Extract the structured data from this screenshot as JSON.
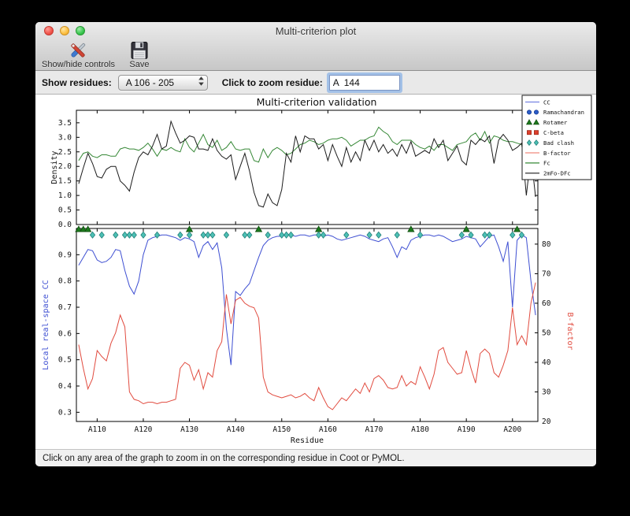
{
  "window": {
    "title": "Multi-criterion plot"
  },
  "toolbar": {
    "show_hide_label": "Show/hide controls",
    "save_label": "Save"
  },
  "controls": {
    "show_residues_label": "Show residues:",
    "show_residues_value": "A 106 - 205",
    "zoom_label": "Click to zoom residue:",
    "zoom_value": "A  144"
  },
  "statusbar": {
    "text": "Click on any area of the graph to zoom in on the corresponding residue in Coot or PyMOL."
  },
  "chart_data": {
    "type": "line",
    "title": "Multi-criterion validation",
    "xlabel": "Residue",
    "x_start": 106,
    "x_end": 205,
    "xlim": [
      105.5,
      205.5
    ],
    "x_tick_residues": [
      110,
      120,
      130,
      140,
      150,
      160,
      170,
      180,
      190,
      200
    ],
    "x_tick_labels": [
      "A110",
      "A120",
      "A130",
      "A140",
      "A150",
      "A160",
      "A170",
      "A180",
      "A190",
      "A200"
    ],
    "grid": false,
    "legend_position": "upper right",
    "top_panel": {
      "ylabel": "Density",
      "ylabel_color": "#111111",
      "ylim": [
        0,
        3.93
      ],
      "yticks": [
        0,
        0.5,
        1,
        1.5,
        2,
        2.5,
        3,
        3.5
      ],
      "ytick_labels": [
        "0.0",
        "0.5",
        "1.0",
        "1.5",
        "2.0",
        "2.5",
        "3.0",
        "3.5"
      ],
      "series": [
        {
          "name": "Fc",
          "color": "#368836",
          "values": [
            2.2,
            2.45,
            2.5,
            2.35,
            2.3,
            2.4,
            2.4,
            2.35,
            2.35,
            2.6,
            2.65,
            2.6,
            2.6,
            2.55,
            2.65,
            2.8,
            2.6,
            2.35,
            2.6,
            2.55,
            2.65,
            2.55,
            2.5,
            2.95,
            2.65,
            2.5,
            2.8,
            3.1,
            2.75,
            2.65,
            2.9,
            2.55,
            2.65,
            2.85,
            2.6,
            2.55,
            2.6,
            2.6,
            2.2,
            2.15,
            2.6,
            2.3,
            2.55,
            2.65,
            2.55,
            2.4,
            2.45,
            2.6,
            2.75,
            2.8,
            2.9,
            2.85,
            2.75,
            2.8,
            2.9,
            2.95,
            2.95,
            3.0,
            2.9,
            2.7,
            2.8,
            2.9,
            2.9,
            3.0,
            3.05,
            3.35,
            3.2,
            3.1,
            2.85,
            2.75,
            2.9,
            2.9,
            2.9,
            2.75,
            2.65,
            2.6,
            2.7,
            2.55,
            2.75,
            2.75,
            2.65,
            2.55,
            2.75,
            2.8,
            2.85,
            3.05,
            3.15,
            2.9,
            3.2,
            2.8,
            3.05,
            3.0,
            2.9,
            2.85,
            2.85,
            2.8,
            2.75,
            1.9,
            2.65,
            2.55
          ]
        },
        {
          "name": "2mFo-DFc",
          "color": "#1b1b1b",
          "values": [
            1.4,
            1.95,
            2.45,
            2.1,
            1.65,
            1.6,
            1.9,
            2.0,
            2.0,
            1.5,
            1.35,
            1.15,
            1.8,
            2.3,
            2.5,
            2.4,
            2.7,
            3.1,
            2.6,
            2.7,
            3.55,
            3.15,
            2.8,
            2.9,
            3.05,
            3.0,
            2.6,
            2.6,
            2.55,
            2.95,
            2.55,
            2.35,
            2.25,
            2.4,
            1.55,
            2.0,
            2.45,
            1.85,
            1.1,
            0.65,
            0.6,
            1.05,
            0.75,
            0.65,
            1.2,
            2.45,
            2.15,
            3.05,
            2.5,
            3.05,
            2.95,
            2.95,
            2.6,
            2.75,
            2.2,
            2.75,
            2.35,
            2.0,
            2.65,
            2.15,
            2.5,
            2.2,
            2.9,
            2.55,
            2.9,
            2.5,
            2.75,
            2.45,
            2.6,
            2.35,
            2.75,
            2.45,
            2.85,
            2.35,
            2.45,
            2.55,
            2.45,
            2.95,
            2.65,
            2.9,
            2.2,
            2.45,
            2.7,
            2.2,
            2.05,
            2.9,
            2.75,
            2.95,
            2.85,
            3.05,
            2.1,
            2.9,
            3.1,
            2.9,
            2.55,
            2.65,
            2.8,
            1.0,
            2.4,
            0.95
          ]
        }
      ]
    },
    "bottom_panel": {
      "left_axis": {
        "ylabel": "Local real-space CC",
        "color": "#3e4fd2",
        "ylim": [
          0.265,
          1.0
        ],
        "yticks": [
          0.3,
          0.4,
          0.5,
          0.6,
          0.7,
          0.8,
          0.9
        ],
        "ytick_labels": [
          "0.3",
          "0.4",
          "0.5",
          "0.6",
          "0.7",
          "0.8",
          "0.9"
        ]
      },
      "right_axis": {
        "ylabel": "B-factor",
        "color": "#e14b3f",
        "ylim": [
          20,
          85.3
        ],
        "yticks": [
          20,
          30,
          40,
          50,
          60,
          70,
          80
        ],
        "ytick_labels": [
          "20",
          "30",
          "40",
          "50",
          "60",
          "70",
          "80"
        ]
      },
      "series": [
        {
          "name": "CC",
          "axis": "left",
          "color": "#3e4fd2",
          "values": [
            0.86,
            0.89,
            0.92,
            0.915,
            0.88,
            0.87,
            0.875,
            0.89,
            0.92,
            0.915,
            0.84,
            0.78,
            0.75,
            0.8,
            0.9,
            0.955,
            0.965,
            0.97,
            0.975,
            0.975,
            0.97,
            0.965,
            0.955,
            0.965,
            0.96,
            0.95,
            0.89,
            0.935,
            0.95,
            0.92,
            0.945,
            0.85,
            0.62,
            0.48,
            0.76,
            0.745,
            0.77,
            0.79,
            0.84,
            0.89,
            0.935,
            0.955,
            0.965,
            0.97,
            0.97,
            0.975,
            0.975,
            0.97,
            0.975,
            0.975,
            0.97,
            0.975,
            0.975,
            0.97,
            0.975,
            0.97,
            0.96,
            0.955,
            0.96,
            0.965,
            0.97,
            0.975,
            0.97,
            0.96,
            0.955,
            0.95,
            0.96,
            0.965,
            0.93,
            0.89,
            0.93,
            0.92,
            0.955,
            0.965,
            0.97,
            0.975,
            0.975,
            0.97,
            0.975,
            0.97,
            0.96,
            0.95,
            0.955,
            0.96,
            0.97,
            0.965,
            0.96,
            0.93,
            0.95,
            0.97,
            0.975,
            0.93,
            0.875,
            0.95,
            0.7,
            0.955,
            0.975,
            0.965,
            0.8,
            0.67
          ]
        },
        {
          "name": "B-factor",
          "axis": "right",
          "color": "#e14b3f",
          "values": [
            46,
            38,
            31,
            34.5,
            44,
            42,
            40.5,
            46.5,
            50,
            56,
            52,
            30,
            27.5,
            27,
            26,
            26.5,
            26.5,
            26,
            26.5,
            26.5,
            27,
            27.5,
            38,
            40,
            39,
            34,
            37.5,
            31,
            36.5,
            35,
            44,
            47,
            63,
            53,
            61,
            62,
            60,
            59,
            58.5,
            55,
            35,
            30,
            29,
            28.5,
            28,
            28.5,
            29,
            28,
            28.5,
            29.5,
            28,
            27,
            31.5,
            28,
            25,
            24,
            26,
            28,
            27,
            29,
            31,
            29.5,
            33,
            30,
            34.5,
            35.5,
            34,
            31.5,
            31,
            31.5,
            35.5,
            32,
            33.5,
            32.5,
            38.5,
            35,
            31,
            36,
            44,
            45,
            40,
            38,
            36,
            36.5,
            44,
            38,
            33,
            43,
            44.5,
            43,
            36.5,
            35,
            39,
            44,
            58.5,
            46,
            49,
            46,
            60,
            67
          ]
        }
      ],
      "markers": [
        {
          "name": "Rotamer",
          "shape": "triangle",
          "fill": "#1d7a1d",
          "edge": "#0f4d0f",
          "residues": [
            106,
            107,
            108,
            130,
            145,
            158,
            178,
            190,
            201
          ]
        },
        {
          "name": "Bad clash",
          "shape": "diamond",
          "fill": "#4cc0b5",
          "edge": "#237f78",
          "residues": [
            109,
            111,
            114,
            116,
            117,
            118,
            120,
            123,
            128,
            130,
            133,
            134,
            135,
            138,
            142,
            143,
            147,
            150,
            151,
            152,
            158,
            159,
            164,
            169,
            171,
            175,
            180,
            189,
            191,
            194,
            195,
            200,
            202
          ]
        },
        {
          "name": "Ramachandran",
          "shape": "circle",
          "fill": "#2b5cc8",
          "edge": "#173c92",
          "residues": []
        },
        {
          "name": "C-beta",
          "shape": "square",
          "fill": "#dd3f2c",
          "edge": "#9e2718",
          "residues": []
        }
      ]
    },
    "legend": {
      "entries": [
        {
          "label": "CC",
          "type": "line",
          "color": "#7583e2"
        },
        {
          "label": "Ramachandran",
          "type": "circle",
          "fill": "#2b5cc8",
          "edge": "#173c92"
        },
        {
          "label": "Rotamer",
          "type": "triangle",
          "fill": "#1d7a1d",
          "edge": "#0f4d0f"
        },
        {
          "label": "C-beta",
          "type": "square",
          "fill": "#dd3f2c",
          "edge": "#9e2718"
        },
        {
          "label": "Bad clash",
          "type": "diamond",
          "fill": "#4cc0b5",
          "edge": "#237f78"
        },
        {
          "label": "B-factor",
          "type": "line",
          "color": "#f0897c"
        },
        {
          "label": "Fc",
          "type": "line",
          "color": "#368836"
        },
        {
          "label": "2mFo-DFc",
          "type": "line",
          "color": "#1b1b1b"
        }
      ]
    }
  }
}
